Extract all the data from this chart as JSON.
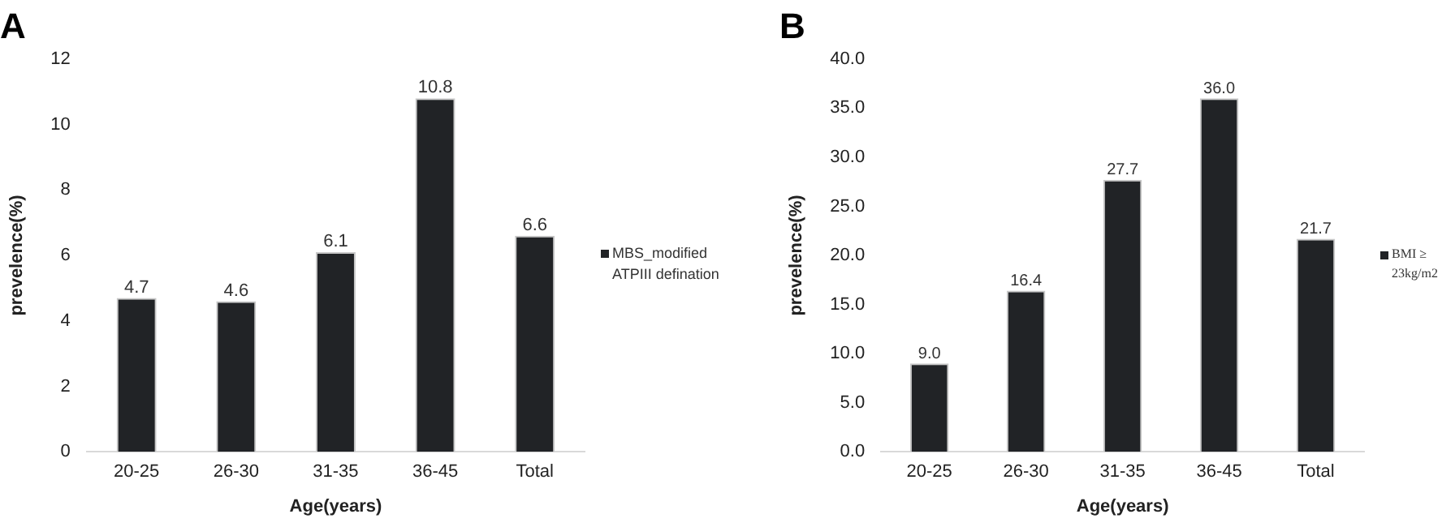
{
  "chart_data": [
    {
      "type": "bar",
      "title": "A",
      "xlabel": "Age(years)",
      "ylabel": "prevelence(%)",
      "categories": [
        "20-25",
        "26-30",
        "31-35",
        "36-45",
        "Total"
      ],
      "series": [
        {
          "name": "MBS_modified ATPIII defination",
          "color": "#212326",
          "values": [
            4.7,
            4.6,
            6.1,
            10.8,
            6.6
          ]
        }
      ],
      "ylim": [
        0,
        12
      ],
      "yticks": [
        0,
        2,
        4,
        6,
        8,
        10,
        12
      ],
      "grid": false,
      "legend": "right",
      "data_labels": true
    },
    {
      "type": "bar",
      "title": "B",
      "xlabel": "Age(years)",
      "ylabel": "prevelence(%)",
      "categories": [
        "20-25",
        "26-30",
        "31-35",
        "36-45",
        "Total"
      ],
      "series": [
        {
          "name": "BMI ≥ 23kg/m2",
          "color": "#212326",
          "values": [
            9.0,
            16.4,
            27.7,
            36.0,
            21.7
          ],
          "value_labels": [
            "9.0",
            "16.4",
            "27.7",
            "36.0",
            "21.7"
          ]
        }
      ],
      "ylim": [
        0,
        40
      ],
      "yticks": [
        {
          "value": 0,
          "label": "0.0"
        },
        {
          "value": 5,
          "label": "5.0"
        },
        {
          "value": 10,
          "label": "10.0"
        },
        {
          "value": 15,
          "label": "15.0"
        },
        {
          "value": 20,
          "label": "20.0"
        },
        {
          "value": 25,
          "label": "25.0"
        },
        {
          "value": 30,
          "label": "30.0"
        },
        {
          "value": 35,
          "label": "35.0"
        },
        {
          "value": 40,
          "label": "40.0"
        }
      ],
      "grid": false,
      "legend": "right"
    }
  ]
}
